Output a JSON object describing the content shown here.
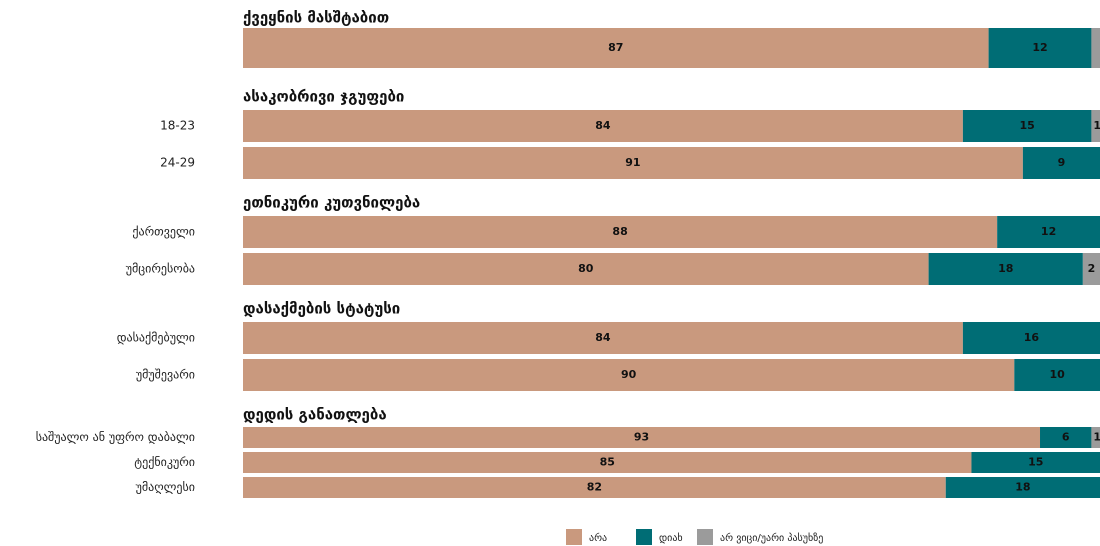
{
  "chart_data": {
    "type": "bar",
    "orientation": "horizontal",
    "stacked": true,
    "xlim": [
      0,
      100
    ],
    "series": [
      {
        "name": "არა",
        "color": "#c9997e"
      },
      {
        "name": "დიახ",
        "color": "#006d75"
      },
      {
        "name": "არ ვიცი/უარი პასუხზე",
        "color": "#9b9b9b"
      }
    ],
    "groups": [
      {
        "title": "ქვეყნის მასშტაბით",
        "rows": [
          {
            "label": null,
            "values": [
              87,
              12,
              1
            ],
            "value_labels": [
              "87",
              "12",
              null
            ]
          }
        ]
      },
      {
        "title": "ასაკობრივი ჯგუფები",
        "rows": [
          {
            "label": "18-23",
            "values": [
              84,
              15,
              1
            ]
          },
          {
            "label": "24-29",
            "values": [
              91,
              9
            ]
          }
        ]
      },
      {
        "title": "ეთნიკური კუთვნილება",
        "rows": [
          {
            "label": "ქართველი",
            "values": [
              88,
              12
            ]
          },
          {
            "label": "უმცირესობა",
            "values": [
              80,
              18,
              2
            ]
          }
        ]
      },
      {
        "title": "დასაქმების სტატუსი",
        "rows": [
          {
            "label": "დასაქმებული",
            "values": [
              84,
              16
            ]
          },
          {
            "label": "უმუშევარი",
            "values": [
              90,
              10,
              1
            ]
          }
        ]
      },
      {
        "title": "დედის განათლება",
        "rows": [
          {
            "label": "საშუალო ან უფრო დაბალი",
            "values": [
              93,
              6,
              1
            ]
          },
          {
            "label": "ტექნიკური",
            "values": [
              85,
              15
            ]
          },
          {
            "label": "უმაღლესი",
            "values": [
              82,
              18
            ]
          }
        ]
      }
    ]
  }
}
